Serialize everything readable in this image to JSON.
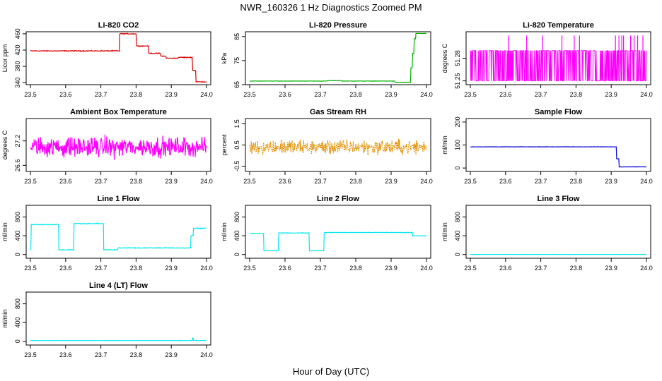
{
  "title": "NWR_160326  1 Hz Diagnostics Zoomed PM",
  "xlabel": "Hour of Day (UTC)",
  "colors": {
    "red": "#e00000",
    "green": "#00b000",
    "magenta": "#ff00ff",
    "orange": "#e09000",
    "blue": "#0000dd",
    "cyan": "#00e8ee",
    "axis": "#000000"
  },
  "chart_data": [
    {
      "type": "line",
      "title": "Li-820 CO2",
      "ylabel": "Licor ppm",
      "color": "red",
      "xlim": [
        23.5,
        24.0
      ],
      "x_ticks": [
        "23.5",
        "23.6",
        "23.7",
        "23.8",
        "23.9",
        "24.0"
      ],
      "ylim": [
        335,
        465
      ],
      "y_ticks": [
        "340",
        "380",
        "420",
        "460"
      ],
      "segments": [
        [
          23.5,
          23.753,
          418
        ],
        [
          23.753,
          23.8,
          460
        ],
        [
          23.8,
          23.835,
          430
        ],
        [
          23.835,
          23.87,
          412
        ],
        [
          23.87,
          23.885,
          405
        ],
        [
          23.885,
          23.92,
          400
        ],
        [
          23.92,
          23.96,
          402
        ],
        [
          23.96,
          23.97,
          370
        ],
        [
          23.97,
          24.0,
          342
        ]
      ],
      "noise": 1.5,
      "spikes": []
    },
    {
      "type": "line",
      "title": "Li-820 Pressure",
      "ylabel": "kPa",
      "color": "green",
      "xlim": [
        23.5,
        24.0
      ],
      "x_ticks": [
        "23.5",
        "23.6",
        "23.7",
        "23.8",
        "23.9",
        "24.0"
      ],
      "ylim": [
        65,
        87
      ],
      "y_ticks": [
        "65",
        "75",
        "85"
      ],
      "segments": [
        [
          23.5,
          23.72,
          66.5
        ],
        [
          23.72,
          23.76,
          66.7
        ],
        [
          23.76,
          23.91,
          66.5
        ],
        [
          23.91,
          23.955,
          66.0
        ],
        [
          23.955,
          23.96,
          72
        ],
        [
          23.96,
          23.965,
          78
        ],
        [
          23.965,
          23.97,
          84
        ],
        [
          23.97,
          24.0,
          86.3
        ]
      ],
      "noise": 0.1,
      "spikes": []
    },
    {
      "type": "line",
      "title": "Li-820 Temperature",
      "ylabel": "degrees C",
      "color": "magenta",
      "xlim": [
        23.5,
        24.0
      ],
      "x_ticks": [
        "23.5",
        "23.6",
        "23.7",
        "23.8",
        "23.9",
        "24.0"
      ],
      "ylim": [
        51.245,
        51.315
      ],
      "y_ticks": [
        "51.25",
        "51.28"
      ],
      "segments": [
        [
          23.5,
          24.0,
          51.27
        ]
      ],
      "noise": 0.0,
      "toggle": [
        51.25,
        51.29
      ],
      "spikes": [
        23.608,
        23.66,
        23.705,
        23.76,
        23.795,
        23.81,
        23.912,
        23.922,
        23.93,
        23.935,
        23.955,
        23.965,
        23.975,
        23.99
      ],
      "spike_value": 51.31
    },
    {
      "type": "line",
      "title": "Ambient Box Temperature",
      "ylabel": "degrees C",
      "color": "magenta",
      "xlim": [
        23.5,
        24.0
      ],
      "x_ticks": [
        "23.5",
        "23.6",
        "23.7",
        "23.8",
        "23.9",
        "24.0"
      ],
      "ylim": [
        26.45,
        27.75
      ],
      "y_ticks": [
        "26.6",
        "27.2"
      ],
      "segments": [
        [
          23.5,
          24.0,
          27.05
        ]
      ],
      "noise": 0.35,
      "spikes": []
    },
    {
      "type": "line",
      "title": "Gas Stream RH",
      "ylabel": "percent",
      "color": "orange",
      "xlim": [
        23.5,
        24.0
      ],
      "x_ticks": [
        "23.5",
        "23.6",
        "23.7",
        "23.8",
        "23.9",
        "24.0"
      ],
      "ylim": [
        -0.75,
        1.75
      ],
      "y_ticks": [
        "-0.5",
        "0.5",
        "1.5"
      ],
      "segments": [
        [
          23.5,
          24.0,
          0.4
        ]
      ],
      "noise": 0.5,
      "spikes": [],
      "dotted": true
    },
    {
      "type": "line",
      "title": "Sample Flow",
      "ylabel": "ml/min",
      "color": "blue",
      "xlim": [
        23.5,
        24.0
      ],
      "x_ticks": [
        "23.5",
        "23.6",
        "23.7",
        "23.8",
        "23.9",
        "24.0"
      ],
      "ylim": [
        -15,
        215
      ],
      "y_ticks": [
        "0",
        "100",
        "200"
      ],
      "segments": [
        [
          23.5,
          23.915,
          92
        ],
        [
          23.915,
          23.922,
          40
        ],
        [
          23.922,
          24.0,
          5
        ]
      ],
      "noise": 1.2,
      "spikes": []
    },
    {
      "type": "line",
      "title": "Line 1 Flow",
      "ylabel": "ml/min",
      "color": "cyan",
      "xlim": [
        23.5,
        24.0
      ],
      "x_ticks": [
        "23.5",
        "23.6",
        "23.7",
        "23.8",
        "23.9",
        "24.0"
      ],
      "ylim": [
        -80,
        1050
      ],
      "y_ticks": [
        "0",
        "400",
        "800"
      ],
      "segments": [
        [
          23.5,
          23.502,
          100
        ],
        [
          23.502,
          23.58,
          640
        ],
        [
          23.58,
          23.623,
          100
        ],
        [
          23.623,
          23.708,
          660
        ],
        [
          23.708,
          23.748,
          100
        ],
        [
          23.748,
          23.955,
          140
        ],
        [
          23.955,
          23.962,
          400
        ],
        [
          23.962,
          24.0,
          560
        ]
      ],
      "noise": 12,
      "spikes": []
    },
    {
      "type": "line",
      "title": "Line 2 Flow",
      "ylabel": "ml/min",
      "color": "cyan",
      "xlim": [
        23.5,
        24.0
      ],
      "x_ticks": [
        "23.5",
        "23.6",
        "23.7",
        "23.8",
        "23.9",
        "24.0"
      ],
      "ylim": [
        -80,
        1050
      ],
      "y_ticks": [
        "0",
        "400",
        "800"
      ],
      "segments": [
        [
          23.5,
          23.54,
          450
        ],
        [
          23.54,
          23.582,
          80
        ],
        [
          23.582,
          23.668,
          460
        ],
        [
          23.668,
          23.71,
          80
        ],
        [
          23.71,
          23.96,
          470
        ],
        [
          23.96,
          24.0,
          400
        ]
      ],
      "noise": 8,
      "spikes": []
    },
    {
      "type": "line",
      "title": "Line 3 Flow",
      "ylabel": "ml/min",
      "color": "cyan",
      "xlim": [
        23.5,
        24.0
      ],
      "x_ticks": [
        "23.5",
        "23.6",
        "23.7",
        "23.8",
        "23.9",
        "24.0"
      ],
      "ylim": [
        -80,
        1050
      ],
      "y_ticks": [
        "0",
        "400",
        "800"
      ],
      "segments": [
        [
          23.5,
          24.0,
          2
        ]
      ],
      "noise": 1,
      "spikes": []
    },
    {
      "type": "line",
      "title": "Line 4 (LT) Flow",
      "ylabel": "ml/min",
      "color": "cyan",
      "xlim": [
        23.5,
        24.0
      ],
      "x_ticks": [
        "23.5",
        "23.6",
        "23.7",
        "23.8",
        "23.9",
        "24.0"
      ],
      "ylim": [
        -80,
        1050
      ],
      "y_ticks": [
        "0",
        "400",
        "800"
      ],
      "segments": [
        [
          23.5,
          23.96,
          15
        ],
        [
          23.96,
          23.963,
          70
        ],
        [
          23.963,
          24.0,
          15
        ]
      ],
      "noise": 2,
      "spikes": []
    }
  ]
}
